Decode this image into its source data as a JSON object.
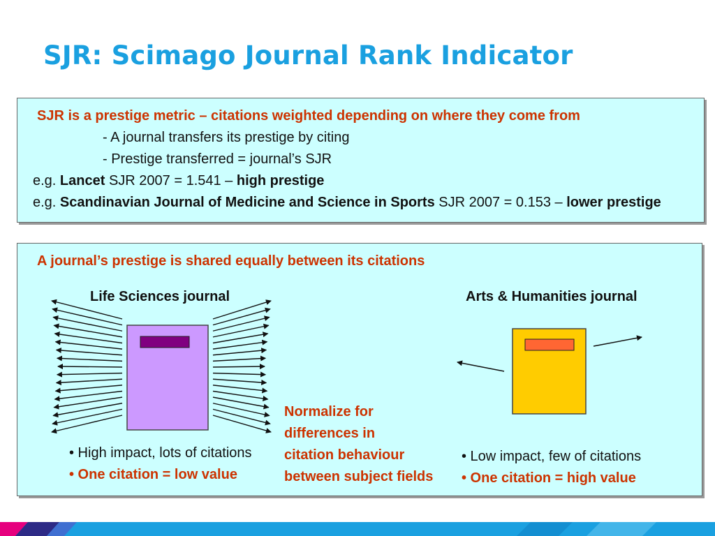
{
  "title": "SJR: Scimago Journal Rank Indicator",
  "panel1": {
    "heading": "SJR is a prestige metric – citations weighted depending on where they come from",
    "bullet1": "- A journal transfers its prestige by citing",
    "bullet2": "- Prestige transferred = journal’s SJR",
    "ex1": {
      "prefix": "e.g. ",
      "journal": "Lancet",
      "value": " SJR 2007 = 1.541 – ",
      "verdict": "high prestige"
    },
    "ex2": {
      "prefix": "e.g. ",
      "journal": "Scandinavian Journal of Medicine and Science in Sports",
      "value": " SJR 2007 = 0.153 – ",
      "verdict": "lower prestige"
    }
  },
  "panel2": {
    "heading": "A journal’s prestige is shared equally between its citations",
    "left": {
      "label": "Life Sciences journal",
      "point1": "• High impact, lots of citations",
      "point2": "• One citation = low value",
      "book_color": "#cc99ff",
      "band_color": "#800080"
    },
    "middle": {
      "line1": "Normalize for",
      "line2": "differences in",
      "line3": "citation behaviour",
      "line4": "between subject fields"
    },
    "right": {
      "label": "Arts & Humanities journal",
      "point1": "• Low impact, few of citations",
      "point2": "• One citation = high value",
      "book_color": "#ffcc00",
      "band_color": "#ff6633"
    }
  },
  "colors": {
    "title": "#1aa0e0",
    "accent_red": "#cc3300",
    "panel_bg": "#ccffff"
  }
}
